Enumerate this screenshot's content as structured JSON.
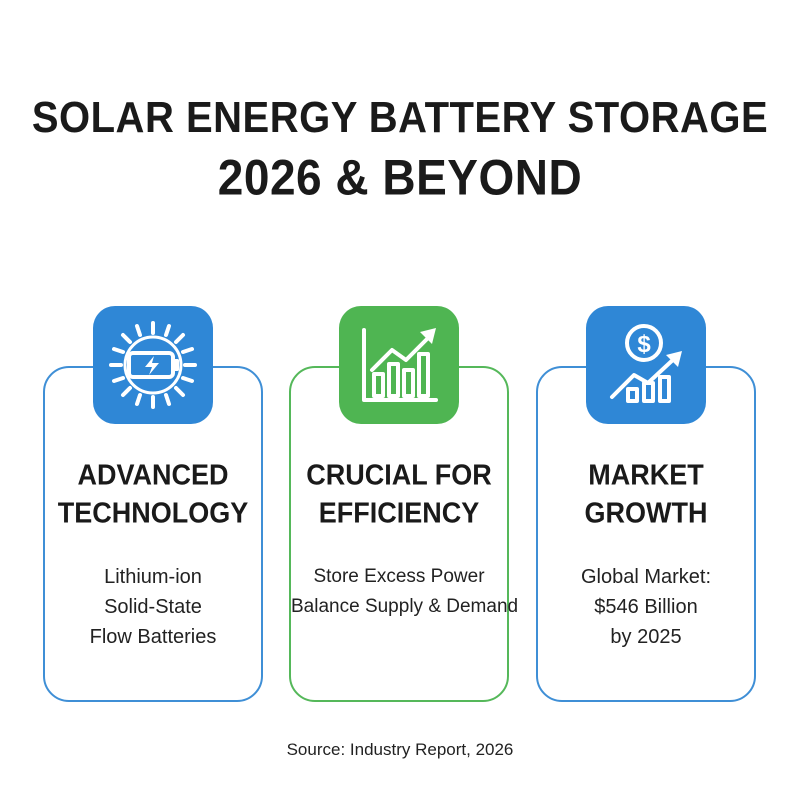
{
  "title": {
    "line1": "SOLAR ENERGY BATTERY STORAGE",
    "line2": "2026 & BEYOND"
  },
  "colors": {
    "blue_accent": "#2f87d6",
    "blue_border": "#3f8fd6",
    "green_accent": "#4fb552",
    "green_border": "#55b85a",
    "text": "#1a1a1a"
  },
  "cards": [
    {
      "icon": "solar-battery-icon",
      "heading_line1": "ADVANCED",
      "heading_line2": "TECHNOLOGY",
      "lines": [
        "Lithium-ion",
        "Solid-State",
        "Flow Batteries"
      ]
    },
    {
      "icon": "bar-chart-growth-icon",
      "heading_line1": "CRUCIAL FOR",
      "heading_line2": "EFFICIENCY",
      "lines": [
        "Store Excess Power",
        "Balance Supply & Demand"
      ]
    },
    {
      "icon": "dollar-growth-icon",
      "heading_line1": "MARKET",
      "heading_line2": "GROWTH",
      "lines": [
        "Global Market:",
        "$546 Billion",
        "by 2025"
      ]
    }
  ],
  "source": "Source: Industry Report, 2026"
}
